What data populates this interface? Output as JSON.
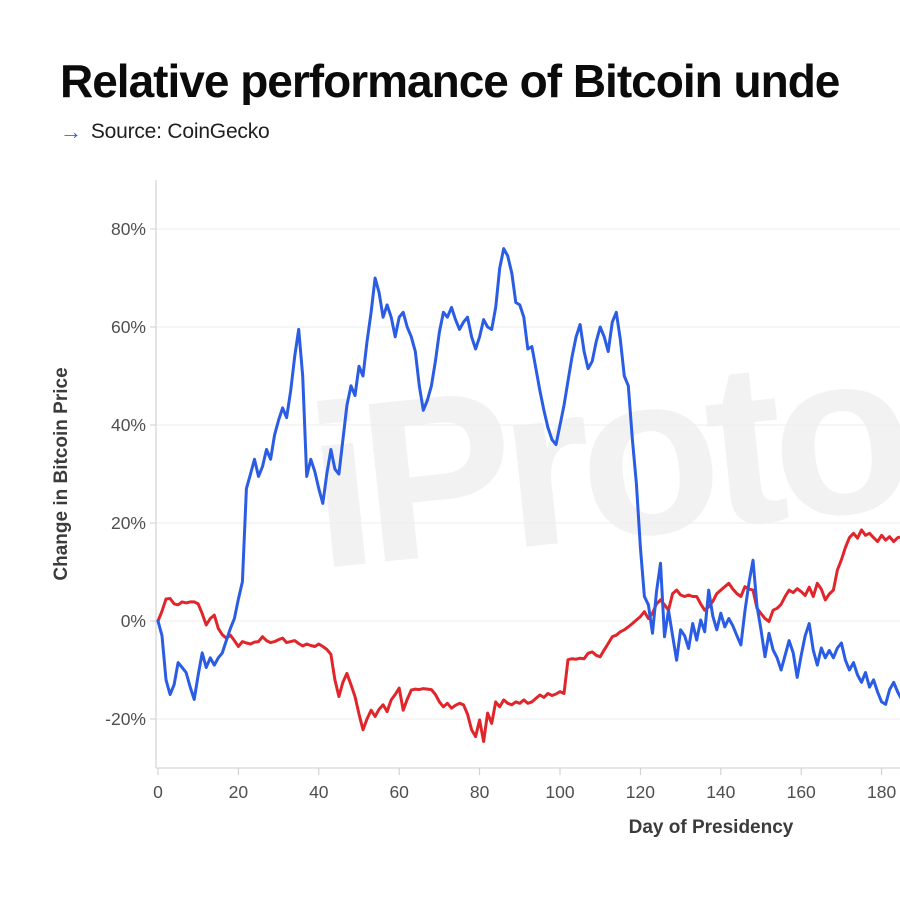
{
  "header": {
    "title": "Relative performance of Bitcoin unde",
    "source_arrow": "→",
    "source_text": "Source: CoinGecko"
  },
  "watermark_text": "iProto",
  "colors": {
    "blue_line": "#2a5ce4",
    "red_line": "#e0262b",
    "gridline": "#ededed",
    "axis_line": "#d6d6d6",
    "tick_mark": "#cccccc",
    "tick_label": "#4f4f4f",
    "watermark": "#f2f2f2"
  },
  "chart_data": {
    "type": "line",
    "title": "Relative performance of Bitcoin unde",
    "xlabel": "Day of Presidency",
    "ylabel": "Change in Bitcoin Price",
    "x_ticks": [
      0,
      20,
      40,
      60,
      80,
      100,
      120,
      140,
      160,
      180
    ],
    "y_tick_labels": [
      "80%",
      "60%",
      "40%",
      "20%",
      "0%",
      "-20%"
    ],
    "y_tick_values": [
      80,
      60,
      40,
      20,
      0,
      -20
    ],
    "x_range": [
      0,
      185
    ],
    "visible_y_range": [
      -30,
      90
    ],
    "grid": true,
    "legend": "none",
    "x_is_day_index": true,
    "series": [
      {
        "name": "blue-line",
        "color": "#2a5ce4",
        "values": [
          0,
          -3,
          -12,
          -15,
          -13,
          -8.5,
          -9.5,
          -10.5,
          -13.5,
          -16,
          -11,
          -6.5,
          -9.5,
          -7.5,
          -9,
          -7.5,
          -6.5,
          -4,
          -1.5,
          0.5,
          4.5,
          8,
          27,
          30,
          33,
          29.5,
          31.5,
          35,
          33,
          38,
          41,
          43.5,
          41.5,
          47,
          54,
          59.5,
          50,
          29.5,
          33,
          30.5,
          27,
          24,
          30,
          35,
          31,
          30,
          37,
          44,
          48,
          46,
          52,
          50,
          57,
          63,
          70,
          67,
          62,
          64.5,
          62,
          58,
          62,
          63,
          60,
          58,
          55,
          48,
          43,
          45,
          48,
          53,
          59,
          63,
          62,
          64,
          61.5,
          59.5,
          61,
          62,
          58,
          55.5,
          58,
          61.5,
          60,
          59.5,
          64,
          72,
          76,
          74.5,
          71,
          65,
          64.5,
          62,
          55.5,
          56,
          51.5,
          47,
          43,
          39.5,
          37,
          36,
          40,
          44,
          49,
          54,
          58,
          60.5,
          55,
          51.5,
          53,
          57,
          60,
          58,
          55,
          61,
          63,
          57.5,
          50,
          48,
          37,
          28,
          15,
          5,
          3.3,
          -2.5,
          6,
          11.8,
          -3.2,
          2.2,
          -3,
          -8,
          -1.8,
          -3,
          -5.6,
          -0.5,
          -3.9,
          0.2,
          -2.2,
          6.3,
          1,
          -1.8,
          1.6,
          -1.2,
          0.5,
          -1,
          -3,
          -4.9,
          2,
          7.7,
          12.4,
          3,
          -1.8,
          -7.3,
          -2.5,
          -5.9,
          -7.5,
          -10,
          -7,
          -4,
          -6.5,
          -11.5,
          -7,
          -3,
          -0.5,
          -6,
          -9,
          -5.5,
          -7.5,
          -6,
          -7.5,
          -5.5,
          -4.5,
          -8,
          -10,
          -8.5,
          -11,
          -12.5,
          -10.5,
          -13.5,
          -12,
          -14.5,
          -16.5,
          -17,
          -14,
          -12.5,
          -14.5,
          -16
        ]
      },
      {
        "name": "red-line",
        "color": "#e0262b",
        "values": [
          0,
          2,
          4.5,
          4.6,
          3.5,
          3.3,
          3.9,
          3.7,
          3.9,
          3.9,
          3.5,
          1.5,
          -0.8,
          0.5,
          1.2,
          -1.5,
          -2.8,
          -3.5,
          -2.9,
          -4,
          -5.2,
          -4.2,
          -4.5,
          -4.7,
          -4.3,
          -4.2,
          -3.2,
          -4,
          -4.4,
          -4.2,
          -3.8,
          -3.5,
          -4.4,
          -4.2,
          -4,
          -4.6,
          -5.1,
          -4.7,
          -5,
          -5.2,
          -4.7,
          -5.2,
          -5.8,
          -6.8,
          -12,
          -15.4,
          -12.5,
          -10.7,
          -13,
          -15.4,
          -19,
          -22.2,
          -20,
          -18.2,
          -19.5,
          -18,
          -17.1,
          -18.5,
          -16.1,
          -15,
          -13.7,
          -18.2,
          -16,
          -14.1,
          -13.9,
          -14,
          -13.8,
          -13.9,
          -14,
          -15,
          -16.5,
          -17.5,
          -16.8,
          -17.8,
          -17.2,
          -16.8,
          -17.1,
          -19,
          -22.2,
          -23.6,
          -20.2,
          -24.6,
          -18.8,
          -20.9,
          -16.5,
          -17.5,
          -16.1,
          -16.8,
          -17.1,
          -16.5,
          -16.8,
          -16.1,
          -16.8,
          -16.5,
          -15.8,
          -15.1,
          -15.6,
          -14.8,
          -15.2,
          -14.9,
          -14.4,
          -14.8,
          -7.9,
          -7.7,
          -7.8,
          -7.6,
          -7.7,
          -6.6,
          -6.3,
          -7,
          -7.3,
          -5.9,
          -4.6,
          -3.2,
          -2.9,
          -2.2,
          -1.8,
          -1.2,
          -0.5,
          0.2,
          0.9,
          1.9,
          0.5,
          1.6,
          3.5,
          4.3,
          3.3,
          2.2,
          5.6,
          6.3,
          5.3,
          5,
          5.3,
          5,
          5,
          3.5,
          2.2,
          2.9,
          4,
          5.6,
          6.3,
          7,
          7.7,
          6.5,
          5.6,
          5,
          7,
          6.5,
          6.3,
          2.6,
          1.5,
          0.5,
          -0.1,
          2.2,
          2.6,
          3.4,
          5,
          6.3,
          5.8,
          6.6,
          6,
          5.2,
          6.9,
          5,
          7.7,
          6.5,
          4.3,
          5.5,
          6.3,
          10.4,
          12.5,
          15,
          17,
          17.9,
          16.9,
          18.6,
          17.5,
          17.9,
          17,
          16.2,
          17.5,
          16.5,
          17.2,
          16.2,
          17,
          17.2
        ]
      }
    ]
  }
}
